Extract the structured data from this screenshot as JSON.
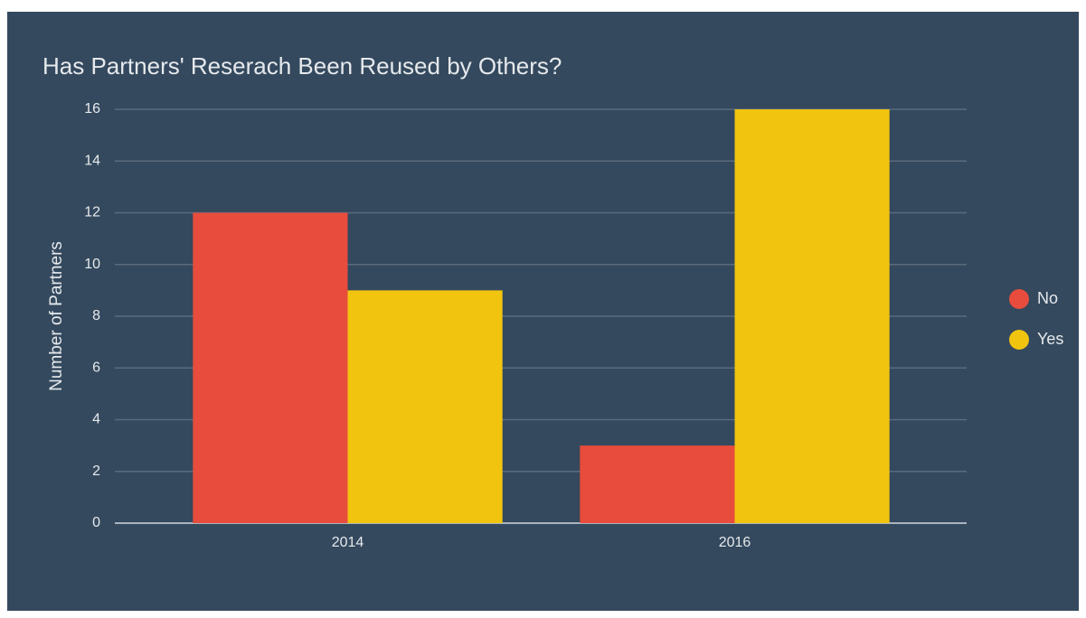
{
  "chart_data": {
    "type": "bar",
    "title": "Has Partners' Reserach Been Reused by Others?",
    "y_label": "Number of Partners",
    "categories": [
      "2014",
      "2016"
    ],
    "series": [
      {
        "name": "No",
        "color": "#e74c3c",
        "values": [
          12,
          3
        ]
      },
      {
        "name": "Yes",
        "color": "#f1c40f",
        "values": [
          9,
          16
        ]
      }
    ],
    "ylim": [
      0,
      16
    ],
    "yticks": [
      0,
      2,
      4,
      6,
      8,
      10,
      12,
      14,
      16
    ],
    "grid": true,
    "legend": "right"
  }
}
